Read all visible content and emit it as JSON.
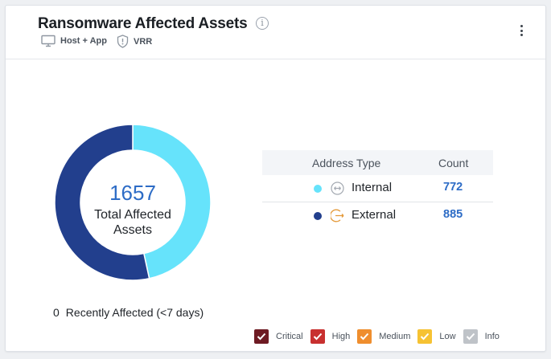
{
  "header": {
    "title": "Ransomware Affected Assets",
    "tags": [
      {
        "label": "Host + App",
        "icon": "monitor-icon"
      },
      {
        "label": "VRR",
        "icon": "shield-icon"
      }
    ]
  },
  "summary": {
    "total_value": "1657",
    "total_label_line1": "Total Affected",
    "total_label_line2": "Assets",
    "recent_count": "0",
    "recent_label": "Recently Affected (<7 days)"
  },
  "table": {
    "headers": {
      "type": "Address Type",
      "count": "Count"
    },
    "rows": [
      {
        "label": "Internal",
        "count": "772",
        "color": "#66e3fb",
        "icon": "internal-arrows-icon"
      },
      {
        "label": "External",
        "count": "885",
        "color": "#223f8d",
        "icon": "external-arrows-icon"
      }
    ]
  },
  "chart_data": {
    "type": "pie",
    "donut": true,
    "categories": [
      "Internal",
      "External"
    ],
    "values": [
      772,
      885
    ],
    "colors": [
      "#66e3fb",
      "#223f8d"
    ]
  },
  "legend": [
    {
      "label": "Critical",
      "color": "#6e1b23"
    },
    {
      "label": "High",
      "color": "#c8302f"
    },
    {
      "label": "Medium",
      "color": "#ef8e2e"
    },
    {
      "label": "Low",
      "color": "#f6c233"
    },
    {
      "label": "Info",
      "color": "#bfc3c8"
    }
  ]
}
